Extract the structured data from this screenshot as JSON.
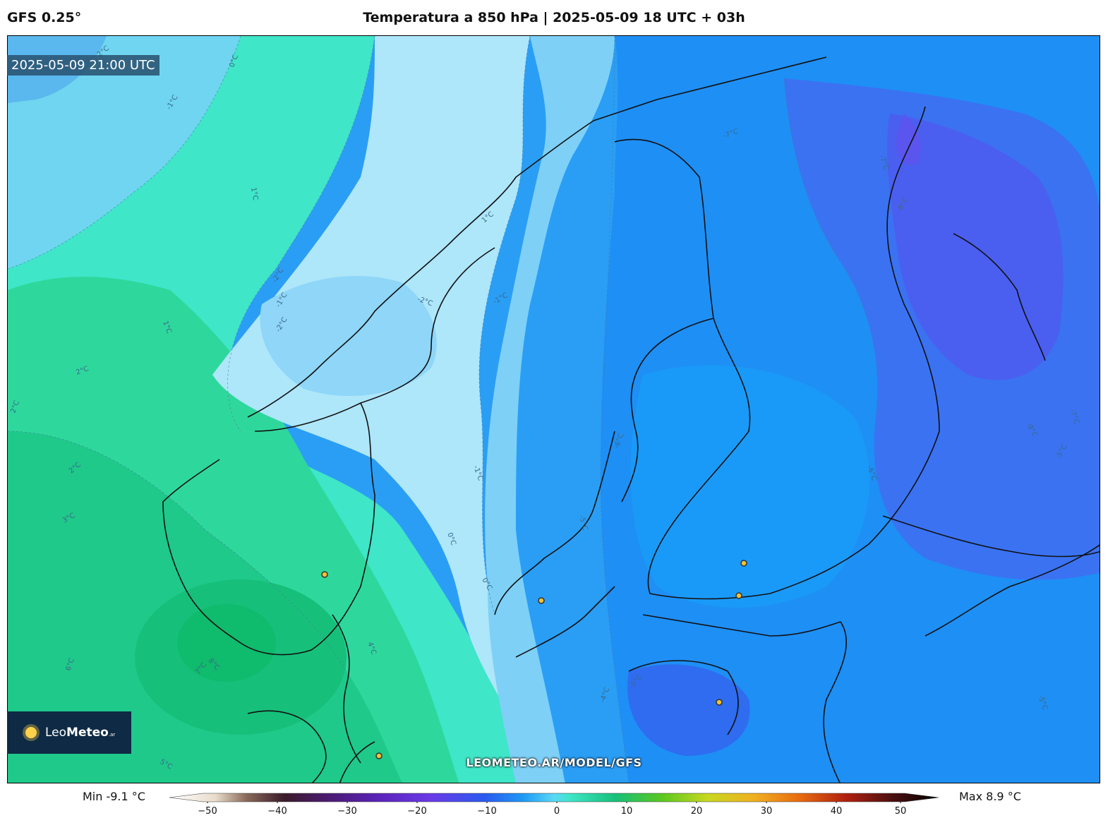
{
  "header": {
    "model": "GFS 0.25°",
    "title": "Temperatura a 850 hPa | 2025-05-09 18 UTC + 03h"
  },
  "map": {
    "valid_time": "2025-05-09 21:00 UTC",
    "watermark": "LEOMETEO.AR/MODEL/GFS",
    "contour_labels": [
      "2°C",
      "0°C",
      "-1°C",
      "1°C",
      "-2°C",
      "-1°C",
      "-2°C",
      "1°C",
      "2°C",
      "2°C",
      "2°C",
      "3°C",
      "1°C",
      "-1°C",
      "-2°C",
      "-1°C",
      "0°C",
      "0°C",
      "4°C",
      "6°C",
      "7°C",
      "8°C",
      "-5°C",
      "-6°C",
      "-7°C",
      "-7°C",
      "-8°C",
      "-6°C",
      "-5°C",
      "-4°C",
      "-5°C",
      "-5°C",
      "-7°C",
      "-9°C",
      "5°C"
    ],
    "colors": {
      "warm_green": "#1ec98a",
      "teal": "#3fe6c8",
      "pale_cyan": "#aee6fa",
      "light_blue": "#7ed0f6",
      "blue": "#2a9ef5",
      "deep_blue": "#2f6cf0",
      "violet_blue": "#4a5ff0",
      "coast": "#111111",
      "city_marker": "#f2c230"
    }
  },
  "logo": {
    "text_light": "Leo",
    "text_bold": "Meteo",
    "suffix": ".ar"
  },
  "colorbar": {
    "min_label": "Min -9.1 °C",
    "max_label": "Max 8.9 °C",
    "ticks": [
      "−50",
      "−40",
      "−30",
      "−20",
      "−10",
      "0",
      "10",
      "20",
      "30",
      "40",
      "50"
    ],
    "range": [
      -50,
      50
    ]
  }
}
